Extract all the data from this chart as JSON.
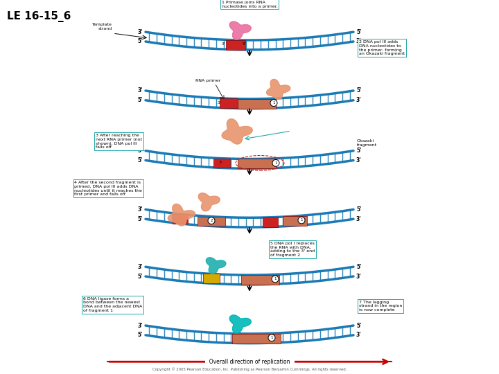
{
  "title": "LE 16-15_6",
  "background_color": "#ffffff",
  "title_fontsize": 11,
  "title_fontweight": "bold",
  "panel1_label": "1 Primase joins RNA\nnucleotides into a primer.",
  "panel2_label": "2 DNA pol III adds\nDNA nucleotides to\nthe primer, forming\nan Okazaki fragment",
  "panel3_label": "3 After reaching the\nnext RNA primer (not\nshown), DNA pol III\nfalls off",
  "panel4_label": "4 After the second fragment is\nprimed, DNA pol III adds DNA\nnucleotides until it reaches the\nfirst primer and falls off",
  "panel5_label": "5 DNA pol I replaces\nthe RNA with DNA,\nadding to the 3' end\nof fragment 2",
  "panel6_label": "6 DNA ligase forms a\nbond between the newest\nDNA and the adjacent DNA\nof fragment 1",
  "panel7_label": "7 The lagging\nstrand in the region\nis now complete",
  "bottom_label": "Overall direction of replication",
  "copyright": "Copyright © 2005 Pearson Education, Inc. Publishing as Pearson Benjamin Cummings. All rights reserved.",
  "template_strand": "Template\nstrand",
  "rna_primer_label": "RNA primer",
  "okazaki_fragment_label": "Okazaki\nfragment",
  "arrow_color": "#cc0000",
  "dna_color": "#1a7ab5",
  "primer_color": "#cc2222",
  "okazaki_color": "#c87050",
  "enzyme_color": "#e8956e",
  "ligase_color": "#20b0b0",
  "pol1_color": "#d4aa00",
  "annotation_color": "#20a8a8",
  "fig_width": 7.2,
  "fig_height": 5.4,
  "dpi": 100
}
